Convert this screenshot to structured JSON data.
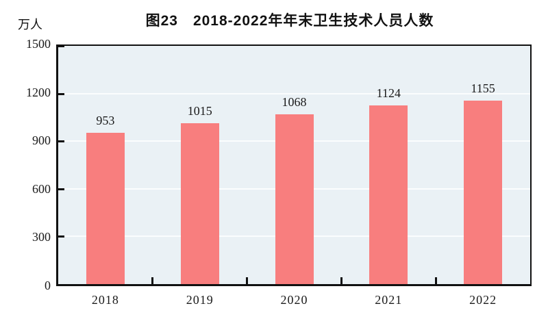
{
  "title": "图23　2018-2022年年末卫生技术人员人数",
  "unit_label": "万人",
  "chart_data": {
    "type": "bar",
    "categories": [
      "2018",
      "2019",
      "2020",
      "2021",
      "2022"
    ],
    "values": [
      953,
      1015,
      1068,
      1124,
      1155
    ],
    "title": "图23　2018-2022年年末卫生技术人员人数",
    "xlabel": "",
    "ylabel": "万人",
    "ylim": [
      0,
      1500
    ],
    "yticks": [
      0,
      300,
      600,
      900,
      1200,
      1500
    ],
    "grid": "horizontal",
    "legend_position": "none",
    "bar_color": "#F87E7E",
    "plot_background": "#EAF1F5",
    "gridline_color": "#FBFDFE",
    "axis_color": "#111111",
    "text_color": "#1a1a1a"
  }
}
